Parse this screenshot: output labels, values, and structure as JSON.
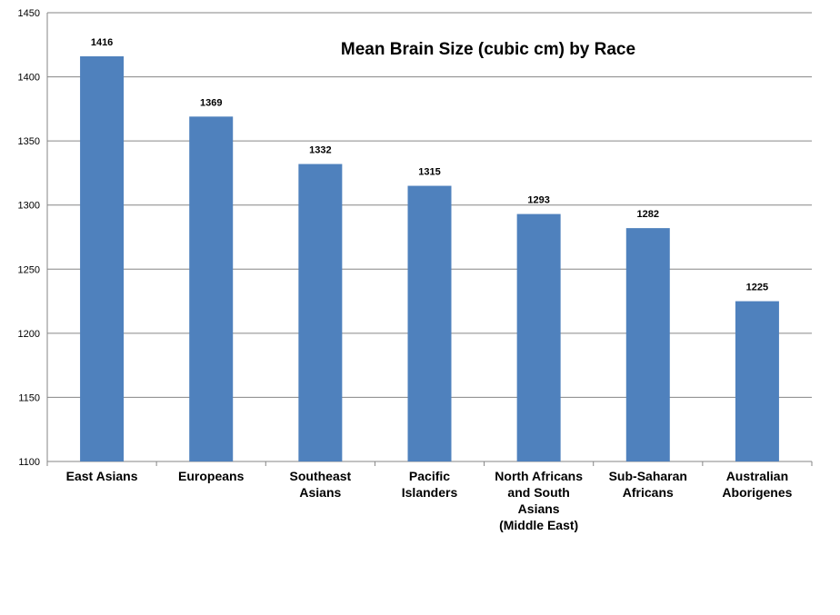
{
  "chart_data": {
    "type": "bar",
    "title": "Mean Brain Size (cubic cm) by Race",
    "xlabel": "",
    "ylabel": "",
    "ylim": [
      1100,
      1450
    ],
    "yticks": [
      1100,
      1150,
      1200,
      1250,
      1300,
      1350,
      1400,
      1450
    ],
    "grid": true,
    "legend": "none",
    "color": "#4f81bd",
    "categories": [
      [
        "East Asians"
      ],
      [
        "Europeans"
      ],
      [
        "Southeast",
        "Asians"
      ],
      [
        "Pacific",
        "Islanders"
      ],
      [
        "North Africans",
        "and South",
        "Asians",
        "(Middle East)"
      ],
      [
        "Sub-Saharan",
        "Africans"
      ],
      [
        "Australian",
        "Aborigenes"
      ]
    ],
    "values": [
      1416,
      1369,
      1332,
      1315,
      1293,
      1282,
      1225
    ],
    "data_labels": [
      "1416",
      "1369",
      "1332",
      "1315",
      "1293",
      "1282",
      "1225"
    ]
  }
}
